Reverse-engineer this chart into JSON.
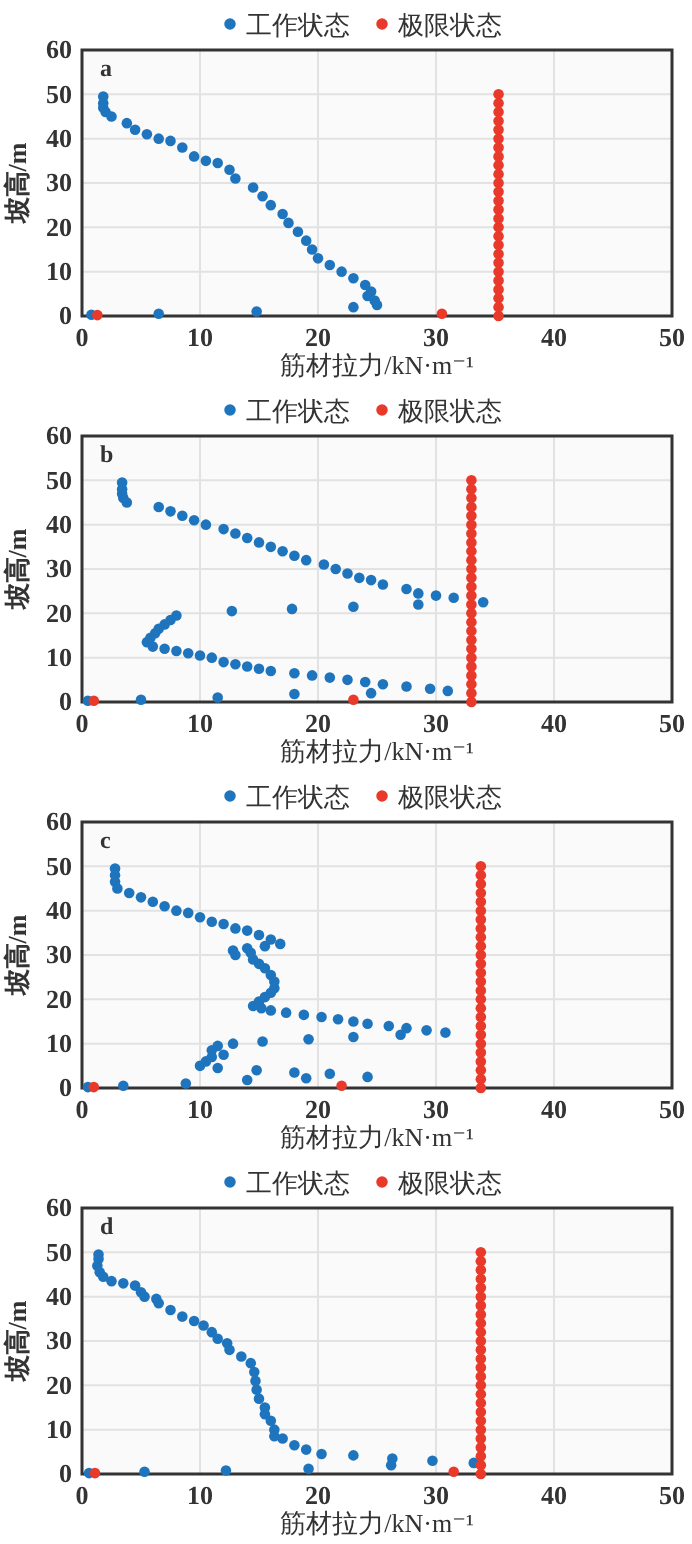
{
  "chart_data": [
    {
      "type": "scatter",
      "annotations": [
        "a"
      ],
      "xlabel": "筋材拉力/kN·m⁻¹",
      "ylabel": "坡高/m",
      "xlim": [
        0,
        50
      ],
      "xticks": [
        0,
        10,
        20,
        30,
        40,
        50
      ],
      "ylim": [
        0,
        60
      ],
      "yticks": [
        0,
        10,
        20,
        30,
        40,
        50,
        60
      ],
      "grid": true,
      "legend": "top",
      "marker": "circle",
      "series": [
        {
          "name": "工作状态",
          "color": "#1f75bd",
          "x": [
            0.8,
            6.5,
            14.8,
            23,
            25,
            24.8,
            24.2,
            24.5,
            24,
            23,
            22,
            21,
            20,
            19.5,
            19,
            18.3,
            17.5,
            17,
            16,
            15.3,
            14.5,
            13,
            12.5,
            11.5,
            10.5,
            9.5,
            8.5,
            7.5,
            6.5,
            5.5,
            4.5,
            3.8,
            2.5,
            2,
            1.8,
            1.8,
            1.8
          ],
          "values": [
            0.3,
            0.5,
            1,
            2,
            2.5,
            3.5,
            4.5,
            5.5,
            7,
            8.5,
            10,
            11.5,
            13,
            15,
            17,
            19,
            21,
            23,
            25,
            27,
            29,
            31,
            33,
            34.5,
            35,
            36,
            38,
            39.5,
            40,
            41,
            42,
            43.5,
            45,
            46,
            47,
            48,
            49.5
          ]
        },
        {
          "name": "极限状态",
          "color": "#e8392b",
          "x": [
            1.3,
            30.5,
            35.3,
            35.3,
            35.3,
            35.3,
            35.3,
            35.3,
            35.3,
            35.3,
            35.3,
            35.3,
            35.3,
            35.3,
            35.3,
            35.3,
            35.3,
            35.3,
            35.3,
            35.3,
            35.3,
            35.3,
            35.3,
            35.3,
            35.3,
            35.3,
            35.3,
            35.3
          ],
          "values": [
            0.2,
            0.5,
            0,
            2,
            4,
            6,
            8,
            10,
            12,
            14,
            16,
            18,
            20,
            22,
            24,
            26,
            28,
            30,
            32,
            34,
            36,
            38,
            40,
            42,
            44,
            46,
            48,
            50
          ]
        }
      ]
    },
    {
      "type": "scatter",
      "annotations": [
        "b"
      ],
      "xlabel": "筋材拉力/kN·m⁻¹",
      "ylabel": "坡高/m",
      "xlim": [
        0,
        50
      ],
      "xticks": [
        0,
        10,
        20,
        30,
        40,
        50
      ],
      "ylim": [
        0,
        60
      ],
      "yticks": [
        0,
        10,
        20,
        30,
        40,
        50,
        60
      ],
      "grid": true,
      "legend": "top",
      "marker": "circle",
      "series": [
        {
          "name": "工作状态",
          "color": "#1f75bd",
          "x": [
            0.5,
            5,
            11.5,
            18,
            24.5,
            31,
            29.5,
            27.5,
            25.5,
            24,
            22.5,
            21,
            19.5,
            18,
            16,
            15,
            14,
            13,
            12,
            11,
            10,
            9,
            8,
            7,
            6,
            5.5,
            5.8,
            6.2,
            6.5,
            7,
            7.5,
            8,
            12.7,
            17.8,
            23,
            28.5,
            34,
            31.5,
            30,
            28.5,
            27.5,
            25.5,
            24.5,
            23.5,
            22.5,
            21.5,
            20.5,
            19,
            18,
            17,
            16,
            15,
            14,
            13,
            12,
            10.5,
            9.5,
            8.5,
            7.5,
            6.5,
            3.8,
            3.5,
            3.4,
            3.4,
            3.4
          ],
          "values": [
            0.3,
            0.5,
            1,
            1.8,
            2,
            2.5,
            3,
            3.5,
            4,
            4.5,
            5,
            5.5,
            6,
            6.5,
            7,
            7.5,
            8,
            8.5,
            9,
            10,
            10.5,
            11,
            11.5,
            12,
            12.5,
            13.5,
            14.5,
            15.5,
            16.5,
            17.5,
            18.5,
            19.5,
            20.5,
            21,
            21.5,
            22,
            22.5,
            23.5,
            24,
            24.5,
            25.5,
            26.5,
            27.5,
            28,
            29,
            30,
            31,
            32,
            33,
            34,
            35,
            36,
            37,
            38,
            39,
            40,
            41,
            42,
            43,
            44,
            45,
            46,
            47,
            48,
            49.5
          ]
        },
        {
          "name": "极限状态",
          "color": "#e8392b",
          "x": [
            1,
            23,
            33,
            33,
            33,
            33,
            33,
            33,
            33,
            33,
            33,
            33,
            33,
            33,
            33,
            33,
            33,
            33,
            33,
            33,
            33,
            33,
            33,
            33,
            33,
            33,
            33,
            33
          ],
          "values": [
            0.3,
            0.5,
            0,
            2,
            4,
            6,
            8,
            10,
            12,
            14,
            16,
            18,
            20,
            22,
            24,
            26,
            28,
            30,
            32,
            34,
            36,
            38,
            40,
            42,
            44,
            46,
            48,
            50
          ]
        }
      ]
    },
    {
      "type": "scatter",
      "annotations": [
        "c"
      ],
      "xlabel": "筋材拉力/kN·m⁻¹",
      "ylabel": "坡高/m",
      "xlim": [
        0,
        50
      ],
      "xticks": [
        0,
        10,
        20,
        30,
        40,
        50
      ],
      "ylim": [
        0,
        60
      ],
      "yticks": [
        0,
        10,
        20,
        30,
        40,
        50,
        60
      ],
      "grid": true,
      "legend": "top",
      "marker": "circle",
      "series": [
        {
          "name": "工作状态",
          "color": "#1f75bd",
          "x": [
            0.5,
            3.5,
            8.8,
            14,
            19,
            21,
            24.2,
            18,
            14.8,
            11.5,
            10,
            10.5,
            11,
            12,
            11,
            11.5,
            12.8,
            15.3,
            19.2,
            23,
            27,
            30.8,
            29.2,
            27.5,
            26,
            24.2,
            23,
            21.7,
            20.3,
            18.8,
            17.3,
            16,
            15.2,
            14.5,
            15,
            15.5,
            16,
            16.3,
            16.3,
            16,
            15.5,
            15,
            14.5,
            14.3,
            14,
            13,
            12.8,
            15.5,
            16.8,
            16,
            15,
            14,
            13,
            12,
            11,
            10,
            9,
            8,
            7,
            6,
            5,
            4,
            3,
            2.8,
            2.8,
            2.8
          ],
          "values": [
            0.2,
            0.5,
            1,
            1.8,
            2.2,
            3.2,
            2.5,
            3.5,
            4,
            4.5,
            5,
            6,
            7,
            7.5,
            8.5,
            9.5,
            10,
            10.5,
            11,
            11.5,
            12,
            12.5,
            13,
            13.5,
            14,
            14.5,
            15,
            15.5,
            16,
            16.5,
            17,
            17.5,
            18,
            18.5,
            19.5,
            20.5,
            21.5,
            22.5,
            24,
            25.5,
            27,
            28,
            29,
            30.5,
            31.5,
            30,
            31,
            32,
            32.5,
            33.5,
            34.5,
            35.5,
            36,
            37,
            37.5,
            38.5,
            39.5,
            40,
            41,
            42,
            43,
            44,
            45,
            46.5,
            48,
            49.5
          ]
        },
        {
          "name": "极限状态",
          "color": "#e8392b",
          "x": [
            1,
            22,
            33.8,
            33.8,
            33.8,
            33.8,
            33.8,
            33.8,
            33.8,
            33.8,
            33.8,
            33.8,
            33.8,
            33.8,
            33.8,
            33.8,
            33.8,
            33.8,
            33.8,
            33.8,
            33.8,
            33.8,
            33.8,
            33.8,
            33.8,
            33.8,
            33.8,
            33.8
          ],
          "values": [
            0.2,
            0.5,
            0,
            2,
            4,
            6,
            8,
            10,
            12,
            14,
            16,
            18,
            20,
            22,
            24,
            26,
            28,
            30,
            32,
            34,
            36,
            38,
            40,
            42,
            44,
            46,
            48,
            50
          ]
        }
      ]
    },
    {
      "type": "scatter",
      "annotations": [
        "d"
      ],
      "xlabel": "筋材拉力/kN·m⁻¹",
      "ylabel": "坡高/m",
      "xlim": [
        0,
        50
      ],
      "xticks": [
        0,
        10,
        20,
        30,
        40,
        50
      ],
      "ylim": [
        0,
        60
      ],
      "yticks": [
        0,
        10,
        20,
        30,
        40,
        50,
        60
      ],
      "grid": true,
      "legend": "top",
      "marker": "circle",
      "series": [
        {
          "name": "工作状态",
          "color": "#1f75bd",
          "x": [
            0.6,
            5.3,
            12.2,
            19.2,
            26.2,
            26.3,
            29.7,
            33.2,
            23,
            20.3,
            19,
            18,
            17,
            16.3,
            16.3,
            16,
            15.5,
            15.5,
            15,
            14.8,
            14.7,
            14.6,
            14.3,
            13.5,
            12.5,
            12.3,
            11.5,
            11,
            10.3,
            9.5,
            8.5,
            7.5,
            6.5,
            6.3,
            5.3,
            5,
            4.5,
            3.5,
            2.5,
            1.8,
            1.5,
            1.3,
            1.4,
            1.4
          ],
          "values": [
            0.2,
            0.5,
            0.8,
            1.2,
            2,
            3.5,
            3,
            2.5,
            4.2,
            4.5,
            5.5,
            6.5,
            8,
            8.5,
            10,
            12,
            13.5,
            15,
            17,
            19,
            21,
            23,
            25,
            26.5,
            28,
            29.5,
            30.5,
            32,
            33.5,
            34.5,
            35.5,
            37,
            38.5,
            39.5,
            40,
            41,
            42.5,
            43,
            43.5,
            44.5,
            45.5,
            47,
            48.5,
            49.5
          ]
        },
        {
          "name": "极限状态",
          "color": "#e8392b",
          "x": [
            1.1,
            31.5,
            33.8,
            33.8,
            33.8,
            33.8,
            33.8,
            33.8,
            33.8,
            33.8,
            33.8,
            33.8,
            33.8,
            33.8,
            33.8,
            33.8,
            33.8,
            33.8,
            33.8,
            33.8,
            33.8,
            33.8,
            33.8,
            33.8,
            33.8,
            33.8,
            33.8,
            33.8
          ],
          "values": [
            0.2,
            0.5,
            0,
            2,
            4,
            6,
            8,
            10,
            12,
            14,
            16,
            18,
            20,
            22,
            24,
            26,
            28,
            30,
            32,
            34,
            36,
            38,
            40,
            42,
            44,
            46,
            48,
            50
          ]
        }
      ]
    }
  ]
}
